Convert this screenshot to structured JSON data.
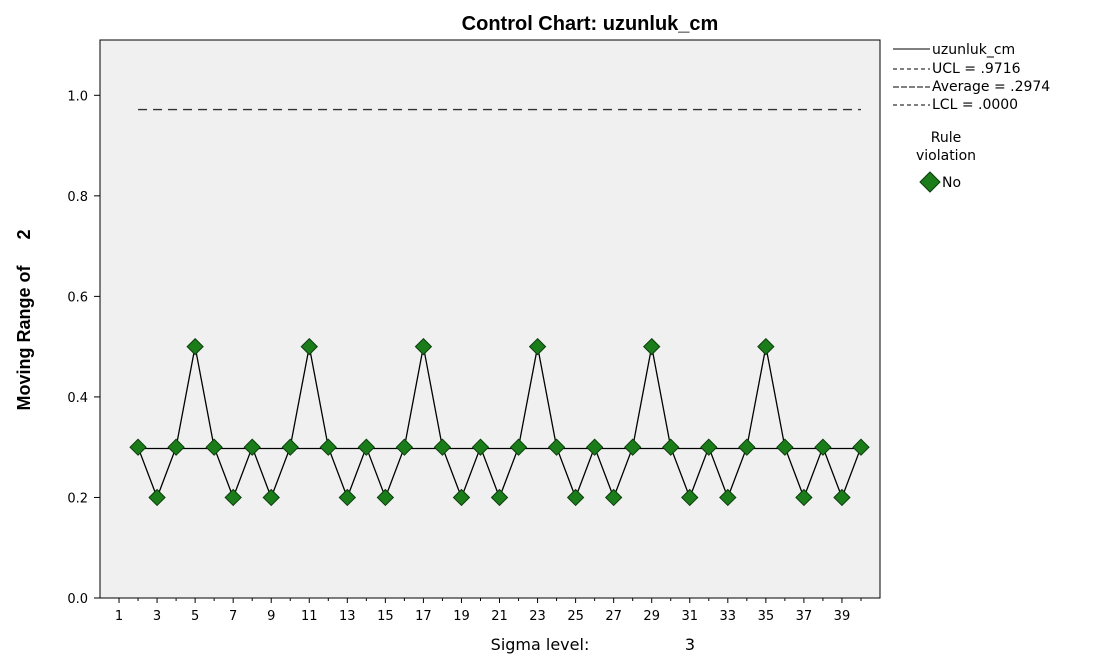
{
  "chart_data": {
    "type": "line",
    "title": "Control Chart: uzunluk_cm",
    "ylabel_text": "Moving Range of",
    "ylabel_span": "2",
    "xlabel_text": "Sigma level:",
    "xlabel_value": "3",
    "x": [
      2,
      3,
      4,
      5,
      6,
      7,
      8,
      9,
      10,
      11,
      12,
      13,
      14,
      15,
      16,
      17,
      18,
      19,
      20,
      21,
      22,
      23,
      24,
      25,
      26,
      27,
      28,
      29,
      30,
      31,
      32,
      33,
      34,
      35,
      36,
      37,
      38,
      39,
      40
    ],
    "series": [
      {
        "name": "uzunluk_cm",
        "values": [
          0.3,
          0.2,
          0.3,
          0.5,
          0.3,
          0.2,
          0.3,
          0.2,
          0.3,
          0.5,
          0.3,
          0.2,
          0.3,
          0.2,
          0.3,
          0.5,
          0.3,
          0.2,
          0.3,
          0.2,
          0.3,
          0.5,
          0.3,
          0.2,
          0.3,
          0.2,
          0.3,
          0.5,
          0.3,
          0.2,
          0.3,
          0.2,
          0.3,
          0.5,
          0.3,
          0.2,
          0.3,
          0.2,
          0.3
        ]
      }
    ],
    "control_lines": [
      {
        "label": "UCL = .9716",
        "value": 0.9716,
        "style": "dashed"
      },
      {
        "label": "Average = .2974",
        "value": 0.2974,
        "style": "solid"
      },
      {
        "label": "LCL = .0000",
        "value": 0.0,
        "style": "dashed"
      }
    ],
    "x_ticks": [
      "1",
      "3",
      "5",
      "7",
      "9",
      "11",
      "13",
      "15",
      "17",
      "19",
      "21",
      "23",
      "25",
      "27",
      "29",
      "31",
      "33",
      "35",
      "37",
      "39"
    ],
    "x_tick_values": [
      1,
      3,
      5,
      7,
      9,
      11,
      13,
      15,
      17,
      19,
      21,
      23,
      25,
      27,
      29,
      31,
      33,
      35,
      37,
      39
    ],
    "xlim": [
      0,
      41
    ],
    "y_ticks": [
      "0.0",
      "0.2",
      "0.4",
      "0.6",
      "0.8",
      "1.0"
    ],
    "y_tick_values": [
      0.0,
      0.2,
      0.4,
      0.6,
      0.8,
      1.0
    ],
    "ylim": [
      0,
      1.11
    ],
    "grid": false,
    "legend": {
      "placement": "right",
      "line_entries": [
        "uzunluk_cm",
        "UCL = .9716",
        "Average = .2974",
        "LCL = .0000"
      ],
      "rule_title_1": "Rule",
      "rule_title_2": "violation",
      "rule_entries": [
        "No"
      ]
    },
    "colors": {
      "plot_bg": "#f0f0f0",
      "line": "#000000",
      "marker_fill": "#1a7d1a",
      "marker_stroke": "#0b3d0b",
      "dash": "#333333"
    }
  }
}
